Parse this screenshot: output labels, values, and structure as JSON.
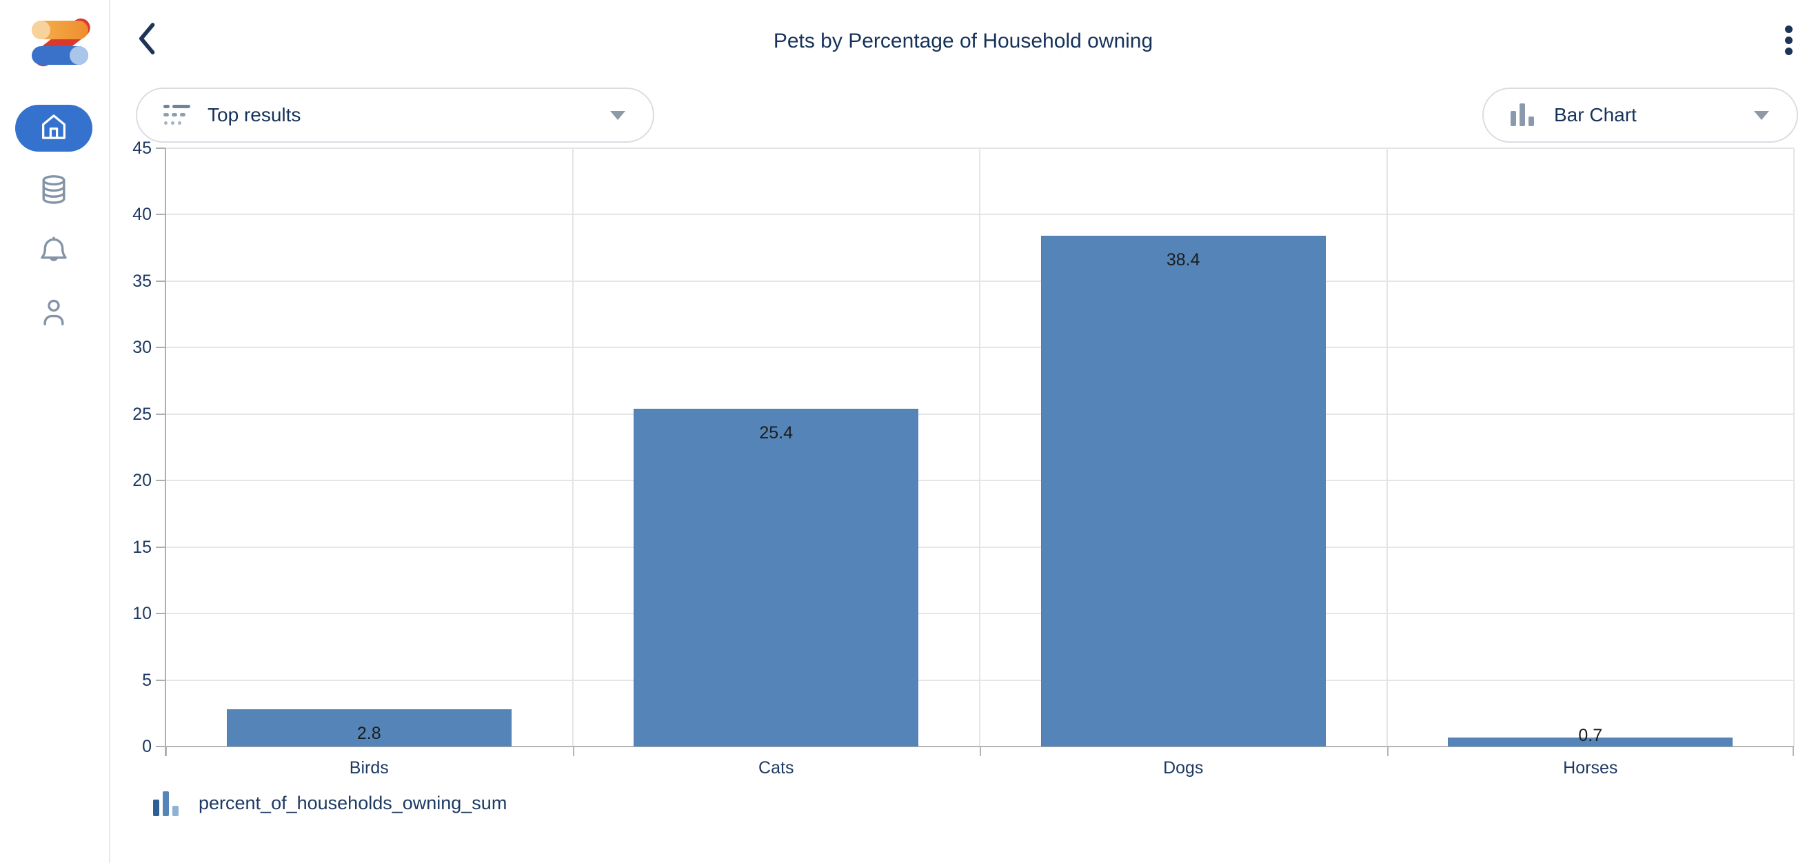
{
  "app": {
    "name": "Zing"
  },
  "sidebar": {
    "items": [
      {
        "id": "home",
        "label": "Home",
        "active": true
      },
      {
        "id": "data-sources",
        "label": "Data sources",
        "active": false
      },
      {
        "id": "notifications",
        "label": "Notifications",
        "active": false
      },
      {
        "id": "profile",
        "label": "Profile",
        "active": false
      }
    ]
  },
  "header": {
    "title": "Pets by Percentage of Household owning",
    "back_label": "Back",
    "menu_label": "More options"
  },
  "controls": {
    "results_dropdown": {
      "label": "Top results"
    },
    "chart_type_dropdown": {
      "label": "Bar Chart"
    }
  },
  "chart_data": {
    "type": "bar",
    "title": "Pets by Percentage of Household owning",
    "categories": [
      "Birds",
      "Cats",
      "Dogs",
      "Horses"
    ],
    "values": [
      2.8,
      25.4,
      38.4,
      0.7
    ],
    "series_name": "percent_of_households_owning_sum",
    "xlabel": "",
    "ylabel": "",
    "ylim": [
      0,
      45
    ],
    "ytick_step": 5,
    "yticks": [
      0,
      5,
      10,
      15,
      20,
      25,
      30,
      35,
      40,
      45
    ],
    "grid": true,
    "value_labels": true,
    "legend_position": "bottom",
    "bar_width_fraction": 0.7
  },
  "colors": {
    "bar_fill": "#5585b8",
    "bar_border": "#4d7dae",
    "accent_blue": "#3472cd",
    "navy_text": "#16325a",
    "axis_text": "#1e3a62",
    "gridline": "#e5e5e5",
    "icon_gray": "#8494a8",
    "legend_bar_1": "#2e5e96",
    "legend_bar_2": "#5585b8",
    "legend_bar_3": "#8fb1d6"
  },
  "icons": {
    "logo": "zing-logo",
    "nav": [
      "home-icon",
      "database-icon",
      "bell-icon",
      "person-icon"
    ],
    "back": "chevron-left-icon",
    "menu": "kebab-menu-icon",
    "results": "top-results-icon",
    "chart_type": "bar-chart-icon",
    "legend": "bar-chart-icon"
  }
}
